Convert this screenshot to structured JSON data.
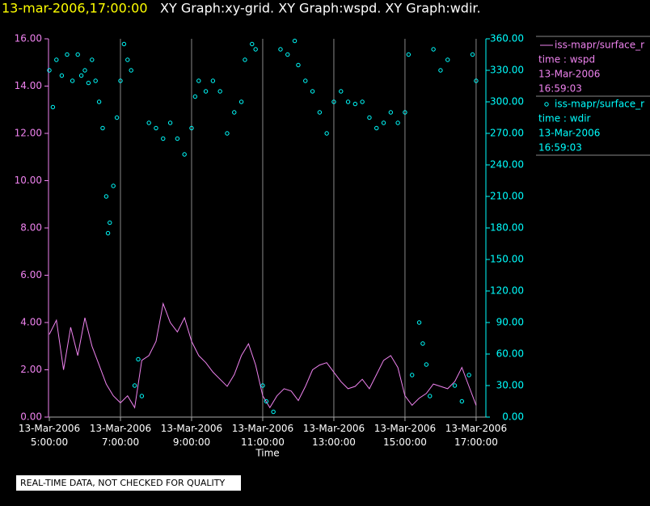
{
  "chart_data": {
    "type": "line",
    "title": "13-mar-2006,17:00:00",
    "subtitle": "XY Graph:xy-grid.  XY Graph:wspd.  XY Graph:wdir.",
    "x_label": "Time",
    "footer": "REAL-TIME DATA, NOT CHECKED FOR QUALITY",
    "xlim": [
      5,
      17.07
    ],
    "xticks": [
      {
        "value": 5,
        "label": "13-Mar-2006 5:00:00"
      },
      {
        "value": 7,
        "label": "13-Mar-2006 7:00:00"
      },
      {
        "value": 9,
        "label": "13-Mar-2006 9:00:00"
      },
      {
        "value": 11,
        "label": "13-Mar-2006 11:00:00"
      },
      {
        "value": 13,
        "label": "13-Mar-2006 13:00:00"
      },
      {
        "value": 15,
        "label": "13-Mar-2006 15:00:00"
      },
      {
        "value": 17,
        "label": "13-Mar-2006 17:00:00"
      }
    ],
    "ylim": [
      0,
      16
    ],
    "yticks": [
      {
        "value": 0,
        "label": "0.00"
      },
      {
        "value": 2,
        "label": "2.00"
      },
      {
        "value": 4,
        "label": "4.00"
      },
      {
        "value": 6,
        "label": "6.00"
      },
      {
        "value": 8,
        "label": "8.00"
      },
      {
        "value": 10,
        "label": "10.00"
      },
      {
        "value": 12,
        "label": "12.00"
      },
      {
        "value": 14,
        "label": "14.00"
      },
      {
        "value": 16,
        "label": "16.00"
      }
    ],
    "y2lim": [
      0,
      360
    ],
    "y2ticks": [
      {
        "value": 0,
        "label": "0.00"
      },
      {
        "value": 30,
        "label": "30.00"
      },
      {
        "value": 60,
        "label": "60.00"
      },
      {
        "value": 90,
        "label": "90.00"
      },
      {
        "value": 120,
        "label": "120.00"
      },
      {
        "value": 150,
        "label": "150.00"
      },
      {
        "value": 180,
        "label": "180.00"
      },
      {
        "value": 210,
        "label": "210.00"
      },
      {
        "value": 240,
        "label": "240.00"
      },
      {
        "value": 270,
        "label": "270.00"
      },
      {
        "value": 300,
        "label": "300.00"
      },
      {
        "value": 330,
        "label": "330.00"
      },
      {
        "value": 360,
        "label": "360.00"
      }
    ],
    "x_grid": true,
    "series": [
      {
        "name": "iss-mapr/surface_r",
        "legend": [
          "time : wspd",
          "13-Mar-2006",
          "16:59:03"
        ],
        "type": "line",
        "color": "#ee82ee",
        "x": [
          5.0,
          5.2,
          5.4,
          5.6,
          5.8,
          6.0,
          6.2,
          6.4,
          6.6,
          6.8,
          7.0,
          7.2,
          7.4,
          7.6,
          7.8,
          8.0,
          8.2,
          8.4,
          8.6,
          8.8,
          9.0,
          9.2,
          9.4,
          9.6,
          9.8,
          10.0,
          10.2,
          10.4,
          10.6,
          10.8,
          11.0,
          11.2,
          11.4,
          11.6,
          11.8,
          12.0,
          12.2,
          12.4,
          12.6,
          12.8,
          13.0,
          13.2,
          13.4,
          13.6,
          13.8,
          14.0,
          14.2,
          14.4,
          14.6,
          14.8,
          15.0,
          15.2,
          15.4,
          15.6,
          15.8,
          16.0,
          16.2,
          16.4,
          16.6,
          16.8,
          17.0
        ],
        "values": [
          3.5,
          4.1,
          2.0,
          3.8,
          2.6,
          4.2,
          3.0,
          2.2,
          1.4,
          0.9,
          0.6,
          0.9,
          0.4,
          2.4,
          2.6,
          3.2,
          4.8,
          4.0,
          3.6,
          4.2,
          3.2,
          2.6,
          2.3,
          1.9,
          1.6,
          1.3,
          1.8,
          2.6,
          3.1,
          2.2,
          0.9,
          0.4,
          0.9,
          1.2,
          1.1,
          0.7,
          1.3,
          2.0,
          2.2,
          2.3,
          1.9,
          1.5,
          1.2,
          1.3,
          1.6,
          1.2,
          1.8,
          2.4,
          2.6,
          2.1,
          0.9,
          0.5,
          0.8,
          1.0,
          1.4,
          1.3,
          1.2,
          1.5,
          2.1,
          1.3,
          0.5
        ]
      },
      {
        "name": "iss-mapr/surface_r",
        "legend": [
          "time : wdir",
          "13-Mar-2006",
          "16:59:03"
        ],
        "type": "scatter",
        "color": "#00ffff",
        "axis": "y2",
        "x": [
          5.0,
          5.1,
          5.2,
          5.35,
          5.5,
          5.65,
          5.8,
          5.9,
          6.0,
          6.1,
          6.2,
          6.3,
          6.4,
          6.5,
          6.6,
          6.65,
          6.7,
          6.8,
          6.9,
          7.0,
          7.1,
          7.2,
          7.3,
          7.4,
          7.5,
          7.6,
          7.8,
          8.0,
          8.2,
          8.4,
          8.6,
          8.8,
          9.0,
          9.1,
          9.2,
          9.4,
          9.6,
          9.8,
          10.0,
          10.2,
          10.4,
          10.5,
          10.7,
          10.8,
          11.0,
          11.1,
          11.3,
          11.5,
          11.7,
          11.9,
          12.0,
          12.2,
          12.4,
          12.6,
          12.8,
          13.0,
          13.2,
          13.4,
          13.6,
          13.8,
          14.0,
          14.2,
          14.4,
          14.6,
          14.8,
          15.0,
          15.1,
          15.2,
          15.4,
          15.5,
          15.6,
          15.7,
          15.8,
          16.0,
          16.2,
          16.4,
          16.6,
          16.8,
          16.9,
          17.0
        ],
        "values": [
          330,
          295,
          340,
          325,
          345,
          320,
          345,
          325,
          330,
          318,
          340,
          320,
          300,
          275,
          210,
          175,
          185,
          220,
          285,
          320,
          355,
          340,
          330,
          30,
          55,
          20,
          280,
          275,
          265,
          280,
          265,
          250,
          275,
          305,
          320,
          310,
          320,
          310,
          270,
          290,
          300,
          340,
          355,
          350,
          30,
          15,
          5,
          350,
          345,
          358,
          335,
          320,
          310,
          290,
          270,
          300,
          310,
          300,
          298,
          300,
          285,
          275,
          280,
          290,
          280,
          290,
          345,
          40,
          90,
          70,
          50,
          20,
          350,
          330,
          340,
          30,
          15,
          40,
          345,
          320
        ]
      }
    ]
  }
}
